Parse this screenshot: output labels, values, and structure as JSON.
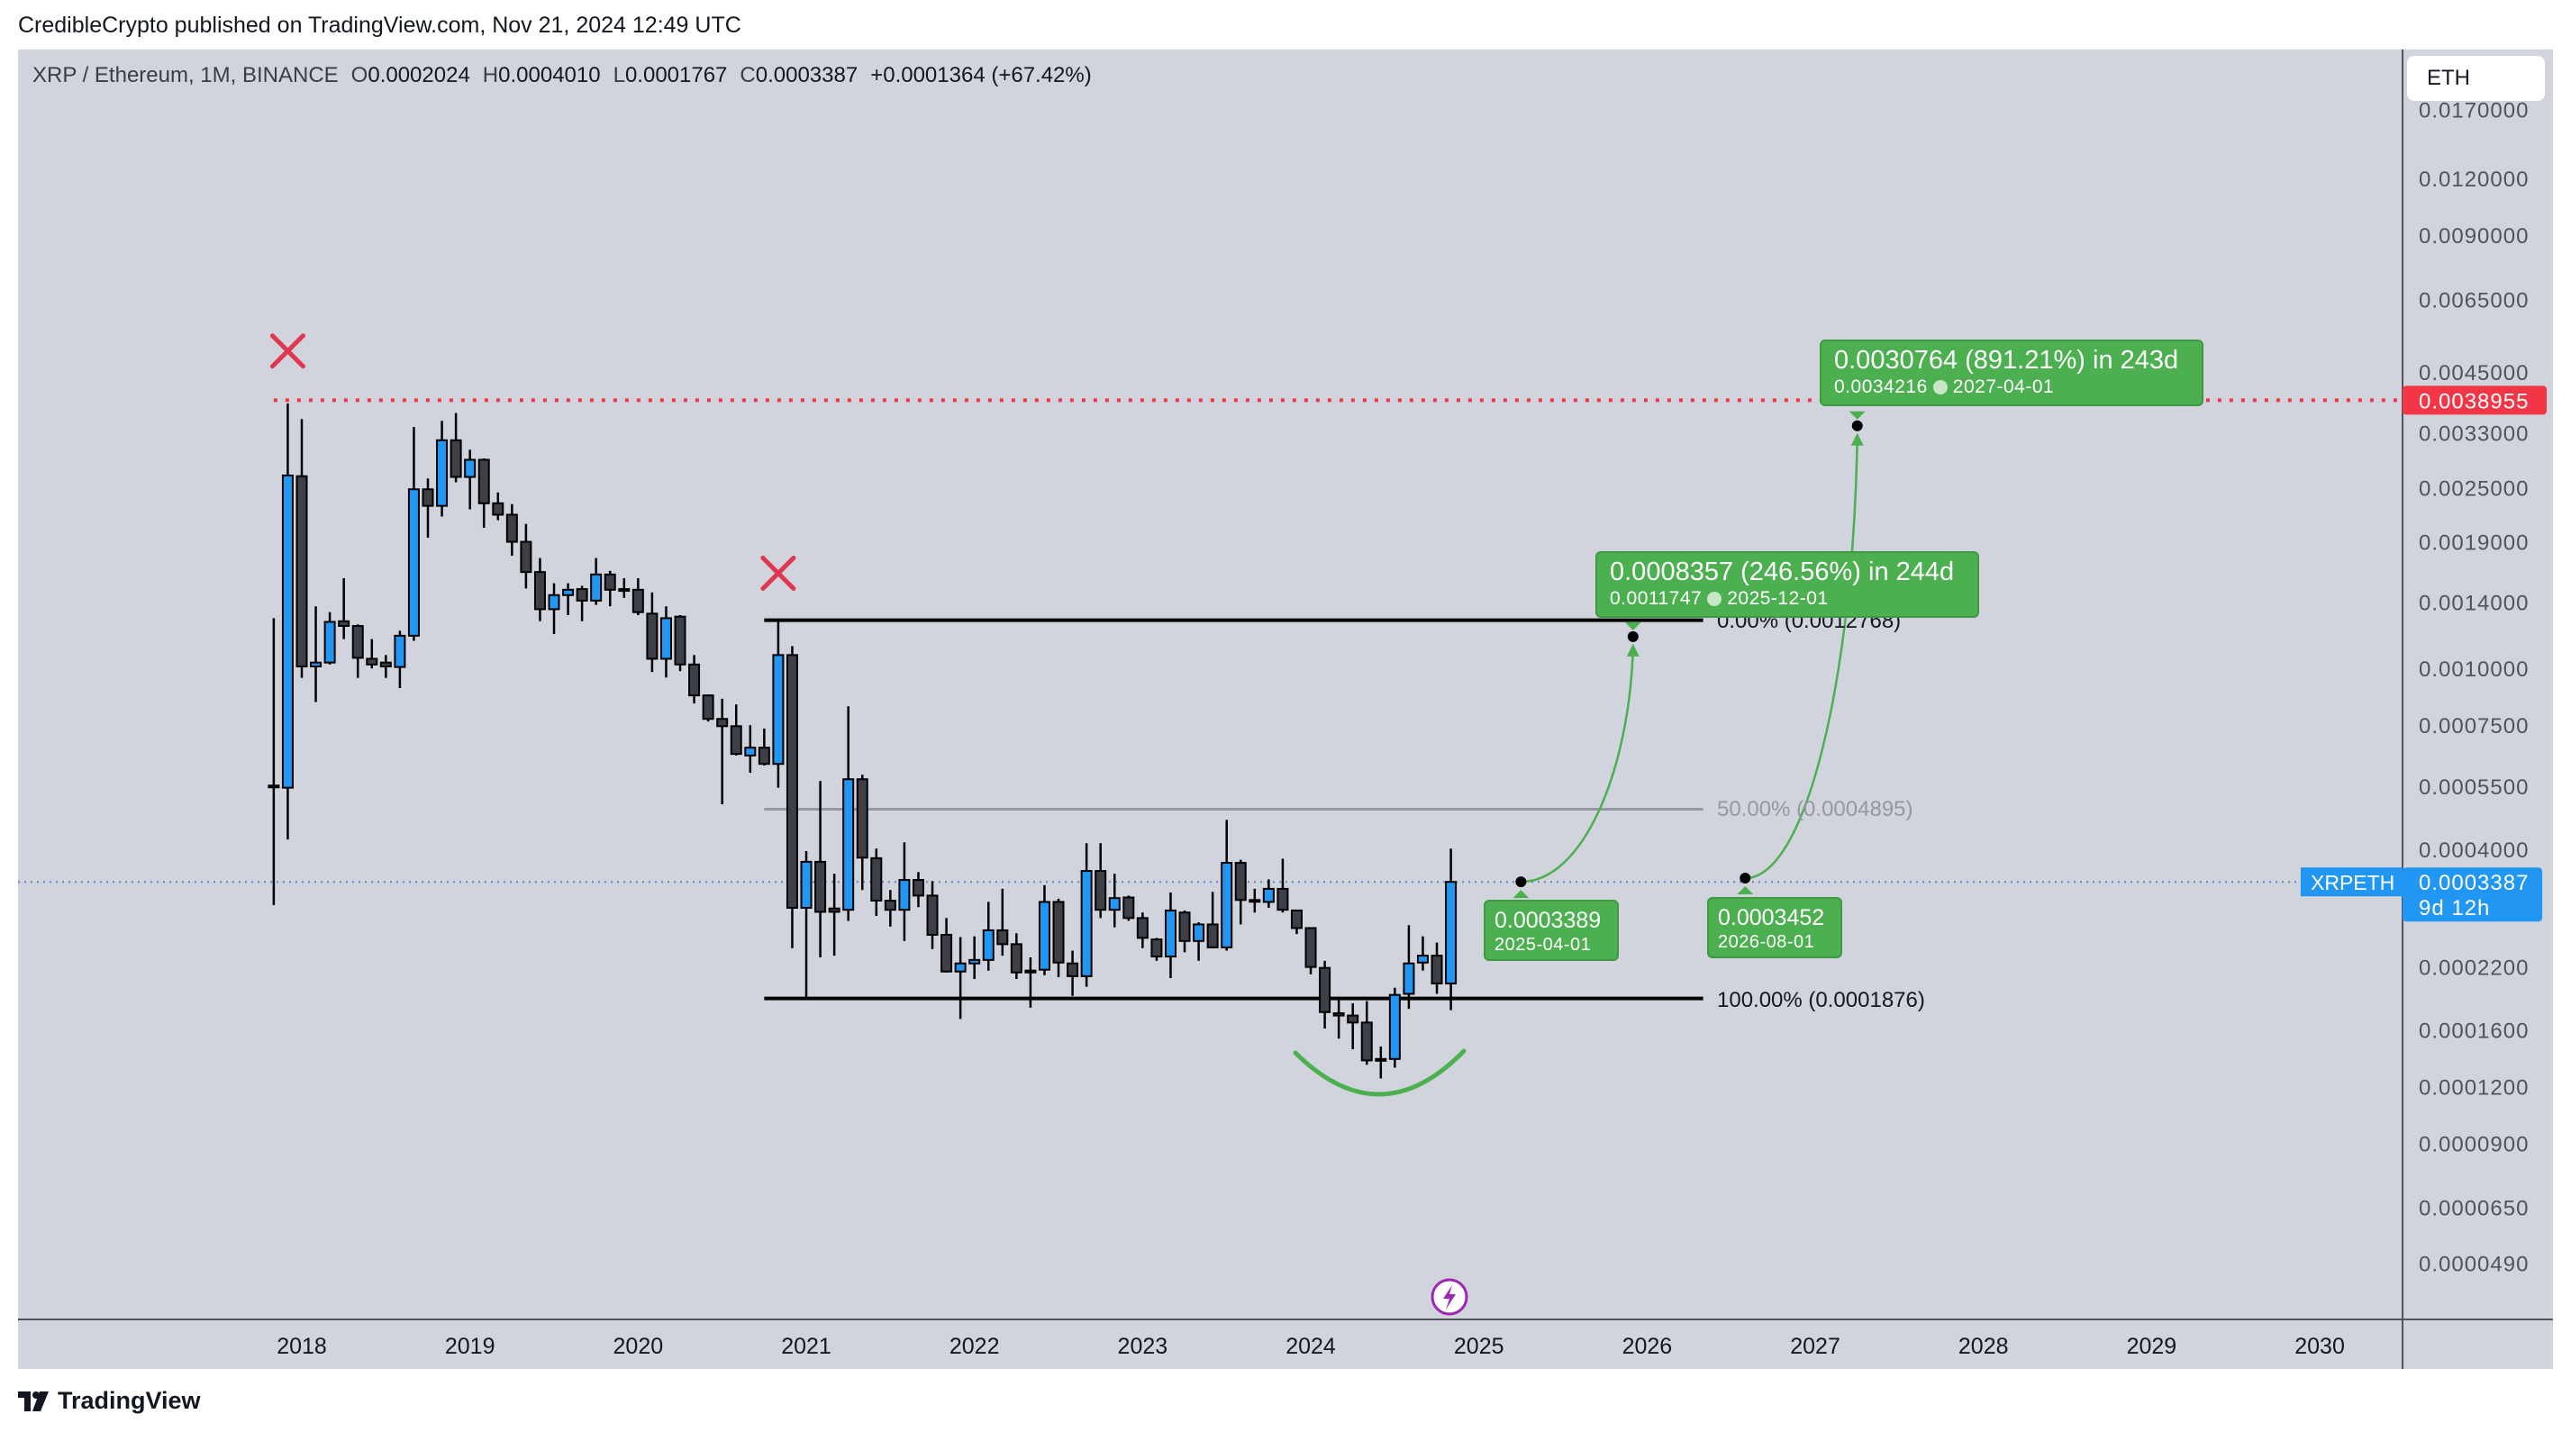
{
  "header": {
    "publish_line": "CredibleCrypto published on TradingView.com, Nov 21, 2024 12:49 UTC"
  },
  "legend": {
    "symbol": "XRP / Ethereum, 1M, BINANCE",
    "open_label": "O",
    "open": "0.0002024",
    "high_label": "H",
    "high": "0.0004010",
    "low_label": "L",
    "low": "0.0001767",
    "close_label": "C",
    "close": "0.0003387",
    "change": "+0.0001364 (+67.42%)"
  },
  "price_axis": {
    "currency_button": "ETH",
    "ticks": [
      "0.0170000",
      "0.0120000",
      "0.0090000",
      "0.0065000",
      "0.0045000",
      "0.0033000",
      "0.0025000",
      "0.0019000",
      "0.0014000",
      "0.0010000",
      "0.0007500",
      "0.0005500",
      "0.0004000",
      "0.0002200",
      "0.0001600",
      "0.0001200",
      "0.0000900",
      "0.0000650",
      "0.0000490"
    ],
    "resistance_label": "0.0038955",
    "last_price": {
      "symbol": "XRPETH",
      "price": "0.0003387",
      "countdown": "9d 12h"
    }
  },
  "time_axis": {
    "ticks": [
      "2018",
      "2019",
      "2020",
      "2021",
      "2022",
      "2023",
      "2024",
      "2025",
      "2026",
      "2027",
      "2028",
      "2029",
      "2030"
    ]
  },
  "footer": {
    "logo": "TradingView"
  },
  "colors": {
    "up": "#2196f3",
    "down": "#3e3f47",
    "background": "#d1d4dc",
    "resistance": "#f23645",
    "last_price": "#2196f3",
    "projection": "#4caf50",
    "fib_mid": "#9598a1"
  },
  "chart_data": {
    "type": "candlestick",
    "symbol": "XRPETH",
    "interval": "1M",
    "y_scale": "log",
    "candle_fields": [
      "date",
      "open",
      "high",
      "low",
      "close"
    ],
    "candles": [
      [
        "2017-11",
        0.000552,
        0.00129,
        0.000301,
        0.000547
      ],
      [
        "2017-12",
        0.000546,
        0.00383,
        0.00042,
        0.00266
      ],
      [
        "2018-01",
        0.00265,
        0.00354,
        0.000953,
        0.00101
      ],
      [
        "2018-02",
        0.00101,
        0.00137,
        0.000843,
        0.00103
      ],
      [
        "2018-03",
        0.00103,
        0.00133,
        0.00102,
        0.001266
      ],
      [
        "2018-04",
        0.00127,
        0.00158,
        0.00116,
        0.00124
      ],
      [
        "2018-05",
        0.00124,
        0.00125,
        0.000953,
        0.001055
      ],
      [
        "2018-06",
        0.00105,
        0.00116,
        0.001,
        0.00102
      ],
      [
        "2018-07",
        0.00103,
        0.00107,
        0.000953,
        0.00101
      ],
      [
        "2018-08",
        0.001007,
        0.00121,
        0.000905,
        0.00118
      ],
      [
        "2018-09",
        0.00118,
        0.0034,
        0.00115,
        0.00248
      ],
      [
        "2018-10",
        0.00248,
        0.00262,
        0.00194,
        0.00228
      ],
      [
        "2018-11",
        0.00228,
        0.00351,
        0.00216,
        0.00318
      ],
      [
        "2018-12",
        0.00318,
        0.00365,
        0.00257,
        0.00264
      ],
      [
        "2019-01",
        0.00264,
        0.00303,
        0.00224,
        0.00288
      ],
      [
        "2019-02",
        0.00288,
        0.0029,
        0.00204,
        0.00231
      ],
      [
        "2019-03",
        0.00231,
        0.00244,
        0.00212,
        0.00218
      ],
      [
        "2019-04",
        0.00218,
        0.0023,
        0.00177,
        0.0019
      ],
      [
        "2019-05",
        0.0019,
        0.00208,
        0.0015,
        0.00163
      ],
      [
        "2019-06",
        0.00163,
        0.00175,
        0.00127,
        0.00135
      ],
      [
        "2019-07",
        0.00135,
        0.00154,
        0.00119,
        0.00145
      ],
      [
        "2019-08",
        0.00145,
        0.00154,
        0.00131,
        0.00149
      ],
      [
        "2019-09",
        0.001495,
        0.00152,
        0.00127,
        0.00141
      ],
      [
        "2019-10",
        0.00141,
        0.00175,
        0.00138,
        0.00161
      ],
      [
        "2019-11",
        0.00161,
        0.00164,
        0.00137,
        0.00149
      ],
      [
        "2019-12",
        0.001495,
        0.00158,
        0.00143,
        0.00149
      ],
      [
        "2020-01",
        0.00149,
        0.00158,
        0.00131,
        0.00133
      ],
      [
        "2020-02",
        0.00132,
        0.00147,
        0.000982,
        0.00105
      ],
      [
        "2020-03",
        0.00105,
        0.00137,
        0.000955,
        0.00129
      ],
      [
        "2020-04",
        0.0013,
        0.00131,
        0.000986,
        0.00102
      ],
      [
        "2020-05",
        0.00102,
        0.00107,
        0.000837,
        0.000872
      ],
      [
        "2020-06",
        0.000872,
        0.000876,
        0.000764,
        0.000774
      ],
      [
        "2020-07",
        0.000774,
        0.000857,
        0.000502,
        0.000746
      ],
      [
        "2020-08",
        0.000746,
        0.000833,
        0.000643,
        0.000648
      ],
      [
        "2020-09",
        0.000643,
        0.00075,
        0.000589,
        0.000669
      ],
      [
        "2020-10",
        0.000669,
        0.000737,
        0.000611,
        0.000616
      ],
      [
        "2020-11",
        0.000616,
        0.0012768,
        0.000546,
        0.00107
      ],
      [
        "2020-12",
        0.00107,
        0.00112,
        0.000242,
        0.000297
      ],
      [
        "2021-01",
        0.000297,
        0.000396,
        0.0001876,
        0.000375
      ],
      [
        "2021-02",
        0.000375,
        0.000565,
        0.000231,
        0.000291
      ],
      [
        "2021-03",
        0.000296,
        0.000353,
        0.000233,
        0.000291
      ],
      [
        "2021-04",
        0.000294,
        0.000825,
        0.000278,
        0.00057
      ],
      [
        "2021-05",
        0.00057,
        0.000583,
        0.000325,
        0.000383
      ],
      [
        "2021-06",
        0.000382,
        0.000401,
        0.000285,
        0.000308
      ],
      [
        "2021-07",
        0.000308,
        0.000325,
        0.00027,
        0.000294
      ],
      [
        "2021-08",
        0.000294,
        0.000414,
        0.000251,
        0.000342
      ],
      [
        "2021-09",
        0.000342,
        0.000356,
        0.000298,
        0.000316
      ],
      [
        "2021-10",
        0.000316,
        0.00034,
        0.000241,
        0.000259
      ],
      [
        "2021-11",
        0.000259,
        0.000282,
        0.000214,
        0.000215
      ],
      [
        "2021-12",
        0.000215,
        0.000256,
        0.000169,
        0.000224
      ],
      [
        "2022-01",
        0.000224,
        0.000257,
        0.000207,
        0.000228
      ],
      [
        "2022-02",
        0.000228,
        0.000306,
        0.000216,
        0.000265
      ],
      [
        "2022-03",
        0.000265,
        0.000327,
        0.000233,
        0.000247
      ],
      [
        "2022-04",
        0.000247,
        0.000261,
        0.000207,
        0.000214
      ],
      [
        "2022-05",
        0.000216,
        0.000231,
        0.000179,
        0.000214
      ],
      [
        "2022-06",
        0.000217,
        0.000333,
        0.000211,
        0.000306
      ],
      [
        "2022-07",
        0.000306,
        0.000311,
        0.000209,
        0.000225
      ],
      [
        "2022-08",
        0.000224,
        0.000239,
        0.00019,
        0.00021
      ],
      [
        "2022-09",
        0.00021,
        0.000412,
        0.000199,
        0.000358
      ],
      [
        "2022-10",
        0.000358,
        0.000412,
        0.000282,
        0.000294
      ],
      [
        "2022-11",
        0.000294,
        0.000353,
        0.000269,
        0.000312
      ],
      [
        "2022-12",
        0.000313,
        0.000316,
        0.000278,
        0.000282
      ],
      [
        "2023-01",
        0.000282,
        0.00029,
        0.000242,
        0.000255
      ],
      [
        "2023-02",
        0.000253,
        0.000255,
        0.000227,
        0.000232
      ],
      [
        "2023-03",
        0.000232,
        0.000321,
        0.000208,
        0.000293
      ],
      [
        "2023-04",
        0.00029,
        0.000293,
        0.000237,
        0.000251
      ],
      [
        "2023-05",
        0.000251,
        0.000276,
        0.000227,
        0.000273
      ],
      [
        "2023-06",
        0.000273,
        0.000322,
        0.000242,
        0.000243
      ],
      [
        "2023-07",
        0.000243,
        0.000464,
        0.000239,
        0.000373
      ],
      [
        "2023-08",
        0.000373,
        0.000379,
        0.000273,
        0.000309
      ],
      [
        "2023-09",
        0.000309,
        0.000327,
        0.00029,
        0.000308
      ],
      [
        "2023-10",
        0.000306,
        0.000343,
        0.000297,
        0.000327
      ],
      [
        "2023-11",
        0.000327,
        0.000381,
        0.00029,
        0.000294
      ],
      [
        "2023-12",
        0.000293,
        0.000293,
        0.00026,
        0.000268
      ],
      [
        "2024-01",
        0.000268,
        0.000268,
        0.000212,
        0.00022
      ],
      [
        "2024-02",
        0.000219,
        0.000227,
        0.000161,
        0.000175
      ],
      [
        "2024-03",
        0.000174,
        0.000189,
        0.000153,
        0.000172
      ],
      [
        "2024-04",
        0.000172,
        0.000183,
        0.000145,
        0.000166
      ],
      [
        "2024-05",
        0.000166,
        0.000185,
        0.000134,
        0.000137
      ],
      [
        "2024-06",
        0.000137,
        0.000147,
        0.000125,
        0.000138
      ],
      [
        "2024-07",
        0.000138,
        0.000198,
        0.000132,
        0.000191
      ],
      [
        "2024-08",
        0.000192,
        0.000272,
        0.000178,
        0.000224
      ],
      [
        "2024-09",
        0.000225,
        0.000257,
        0.000216,
        0.000233
      ],
      [
        "2024-10",
        0.000233,
        0.000249,
        0.000192,
        0.0002024
      ],
      [
        "2024-11",
        0.0002024,
        0.000401,
        0.0001767,
        0.0003387
      ]
    ],
    "resistance_line": {
      "price": 0.0038955,
      "from": "2017-11",
      "style": "dotted"
    },
    "last_price_line": {
      "price": 0.0003387,
      "style": "dotted"
    },
    "rejection_marks": [
      {
        "date": "2017-12",
        "price": 0.005
      },
      {
        "date": "2020-11",
        "price": 0.00162
      }
    ],
    "fib_retracement": {
      "from": "2020-10",
      "to": "2026-05",
      "levels": [
        {
          "label": "0.00% (0.0012768)",
          "price": 0.0012768
        },
        {
          "label": "50.00% (0.0004895)",
          "price": 0.0004895
        },
        {
          "label": "100.00% (0.0001876)",
          "price": 0.0001876
        }
      ]
    },
    "projections": [
      {
        "start": {
          "date": "2025-04",
          "price": 0.0003389,
          "price_label": "0.0003389",
          "date_label": "2025-04-01"
        },
        "end": {
          "date": "2025-12",
          "price": 0.0011747,
          "headline": "0.0008357 (246.56%) in 244d",
          "price_label": "0.0011747",
          "date_label": "2025-12-01"
        }
      },
      {
        "start": {
          "date": "2026-08",
          "price": 0.0003452,
          "price_label": "0.0003452",
          "date_label": "2026-08-01"
        },
        "end": {
          "date": "2027-04",
          "price": 0.0034216,
          "headline": "0.0030764 (891.21%) in 243d",
          "price_label": "0.0034216",
          "date_label": "2027-04-01"
        }
      }
    ]
  }
}
